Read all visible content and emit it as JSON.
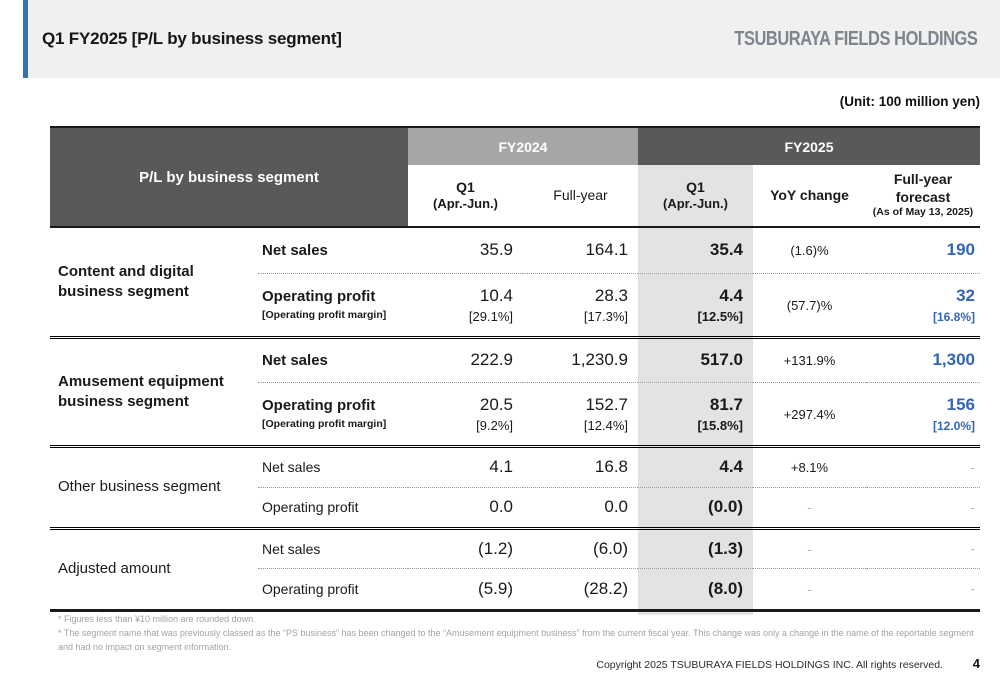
{
  "header": {
    "title": "Q1 FY2025 [P/L by business segment]",
    "logo": "TSUBURAYA FIELDS HOLDINGS"
  },
  "unit_note": "(Unit: 100 million yen)",
  "table": {
    "corner_label": "P/L by business segment",
    "col_groups": {
      "fy2024": "FY2024",
      "fy2025": "FY2025"
    },
    "columns": {
      "fy24_q1": {
        "label": "Q1",
        "sub": "(Apr.-Jun.)"
      },
      "fy24_full": {
        "label": "Full-year"
      },
      "fy25_q1": {
        "label": "Q1",
        "sub": "(Apr.-Jun.)"
      },
      "yoy": {
        "label": "YoY change"
      },
      "forecast": {
        "label": "Full-year forecast",
        "sub": "(As of May 13, 2025)"
      }
    },
    "segments": [
      {
        "name": "Content and digital business segment",
        "rows": [
          {
            "item": "Net sales",
            "fy24_q1": "35.9",
            "fy24_full": "164.1",
            "fy25_q1": "35.4",
            "yoy": "(1.6)%",
            "forecast": "190"
          },
          {
            "item": "Operating profit",
            "item_sub": "[Operating profit margin]",
            "fy24_q1": "10.4",
            "fy24_q1_margin": "[29.1%]",
            "fy24_full": "28.3",
            "fy24_full_margin": "[17.3%]",
            "fy25_q1": "4.4",
            "fy25_q1_margin": "[12.5%]",
            "yoy": "(57.7)%",
            "forecast": "32",
            "forecast_margin": "[16.8%]"
          }
        ]
      },
      {
        "name": "Amusement equipment business segment",
        "rows": [
          {
            "item": "Net sales",
            "fy24_q1": "222.9",
            "fy24_full": "1,230.9",
            "fy25_q1": "517.0",
            "yoy": "+131.9%",
            "forecast": "1,300"
          },
          {
            "item": "Operating profit",
            "item_sub": "[Operating profit margin]",
            "fy24_q1": "20.5",
            "fy24_q1_margin": "[9.2%]",
            "fy24_full": "152.7",
            "fy24_full_margin": "[12.4%]",
            "fy25_q1": "81.7",
            "fy25_q1_margin": "[15.8%]",
            "yoy": "+297.4%",
            "forecast": "156",
            "forecast_margin": "[12.0%]"
          }
        ]
      },
      {
        "name": "Other business segment",
        "rows": [
          {
            "item": "Net sales",
            "fy24_q1": "4.1",
            "fy24_full": "16.8",
            "fy25_q1": "4.4",
            "yoy": "+8.1%",
            "forecast": "-"
          },
          {
            "item": "Operating profit",
            "fy24_q1": "0.0",
            "fy24_full": "0.0",
            "fy25_q1": "(0.0)",
            "yoy": "-",
            "forecast": "-"
          }
        ]
      },
      {
        "name": "Adjusted amount",
        "rows": [
          {
            "item": "Net sales",
            "fy24_q1": "(1.2)",
            "fy24_full": "(6.0)",
            "fy25_q1": "(1.3)",
            "yoy": "-",
            "forecast": "-"
          },
          {
            "item": "Operating profit",
            "fy24_q1": "(5.9)",
            "fy24_full": "(28.2)",
            "fy25_q1": "(8.0)",
            "yoy": "-",
            "forecast": "-"
          }
        ]
      }
    ]
  },
  "footnotes": [
    "* Figures less than ¥10 million are rounded down.",
    "* The segment name that was previously classed as the “PS business” has been changed to the “Amusement equipment business” from the current fiscal year. This change was only a change in the name of the reportable segment and had no impact on segment information."
  ],
  "footer": {
    "copyright": "Copyright 2025 TSUBURAYA FIELDS HOLDINGS INC. All rights reserved.",
    "page": "4"
  },
  "colors": {
    "accent_bar": "#2e75b6",
    "header_dark": "#595959",
    "header_mid": "#a6a6a6",
    "column_highlight": "#e3e3e3",
    "forecast_blue": "#3465b4",
    "logo_gray": "#7d848c"
  }
}
